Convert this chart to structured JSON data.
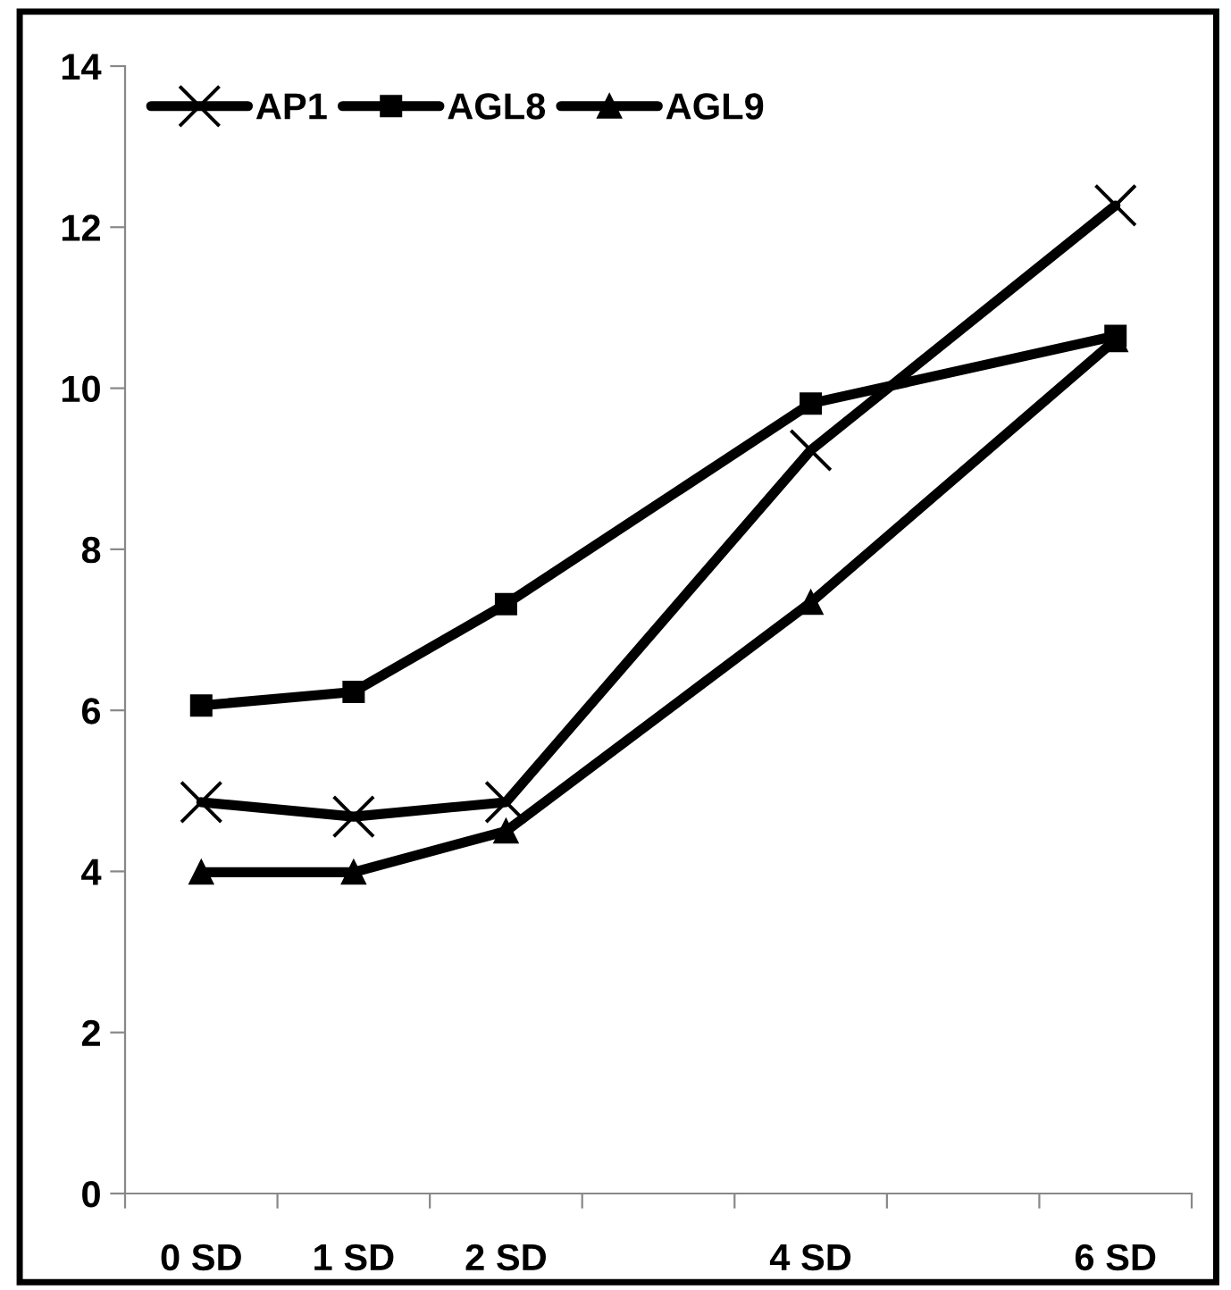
{
  "chart_data": {
    "type": "line",
    "x": [
      0,
      1,
      2,
      4,
      6
    ],
    "xlim": [
      -0.5,
      6.5
    ],
    "xticks": [
      {
        "value": -0.5,
        "label": null
      },
      {
        "value": 0,
        "label": "0 SD"
      },
      {
        "value": 0.5,
        "label": null
      },
      {
        "value": 1,
        "label": "1 SD"
      },
      {
        "value": 1.5,
        "label": null
      },
      {
        "value": 2,
        "label": "2 SD"
      },
      {
        "value": 2.5,
        "label": null
      },
      {
        "value": 3.5,
        "label": null
      },
      {
        "value": 4,
        "label": "4 SD"
      },
      {
        "value": 4.5,
        "label": null
      },
      {
        "value": 5.5,
        "label": null
      },
      {
        "value": 6,
        "label": "6 SD"
      },
      {
        "value": 6.5,
        "label": null
      }
    ],
    "ylim": [
      0,
      14
    ],
    "yticks": [
      0,
      2,
      4,
      6,
      8,
      10,
      12,
      14
    ],
    "grid": false,
    "legend": "top left",
    "series": [
      {
        "name": "AP1",
        "color": "#000000",
        "marker": "cross",
        "values": [
          4.86,
          4.68,
          4.86,
          9.23,
          12.27
        ]
      },
      {
        "name": "AGL8",
        "color": "#000000",
        "marker": "square",
        "values": [
          6.06,
          6.23,
          7.32,
          9.81,
          10.65
        ]
      },
      {
        "name": "AGL9",
        "color": "#000000",
        "marker": "triangle",
        "values": [
          3.99,
          3.99,
          4.5,
          7.34,
          10.6
        ]
      }
    ]
  }
}
